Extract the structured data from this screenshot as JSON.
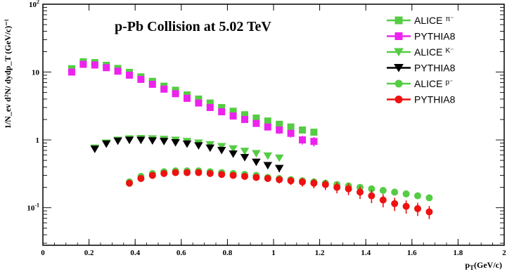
{
  "chart_data": {
    "type": "scatter",
    "title": "p-Pb Collision at 5.02 TeV",
    "xlabel": {
      "main": "p",
      "sub": "T",
      "rest": "(GeV/c)"
    },
    "ylabel": "1/N_ev d²N/ dydp_T (GeV/c)⁻¹",
    "xlim": [
      0,
      2
    ],
    "ylim": [
      0.028,
      100
    ],
    "y_scale": "log",
    "x_ticks": [
      "0",
      "0.2",
      "0.4",
      "0.6",
      "0.8",
      "1",
      "1.2",
      "1.4",
      "1.6",
      "1.8",
      "2"
    ],
    "y_ticks": [
      {
        "base": "10",
        "exp": "-1",
        "value": 0.1
      },
      {
        "base": "1",
        "exp": "",
        "value": 1
      },
      {
        "base": "10",
        "exp": "",
        "value": 10
      },
      {
        "base": "10",
        "exp": "2",
        "value": 100
      }
    ],
    "legend_position": "top-right",
    "grid": false,
    "series": [
      {
        "name": "ALICE π⁻",
        "label": "ALICE",
        "sup": "π⁻",
        "marker": "square",
        "color": "#55cc44",
        "x": [
          0.125,
          0.175,
          0.225,
          0.275,
          0.325,
          0.375,
          0.425,
          0.475,
          0.525,
          0.575,
          0.625,
          0.675,
          0.725,
          0.775,
          0.825,
          0.875,
          0.925,
          0.975,
          1.025,
          1.075,
          1.125,
          1.175
        ],
        "y": [
          11.2,
          14.2,
          13.8,
          12.6,
          11.3,
          9.9,
          8.5,
          7.3,
          6.2,
          5.4,
          4.6,
          4.0,
          3.5,
          3.0,
          2.65,
          2.35,
          2.1,
          1.9,
          1.7,
          1.55,
          1.4,
          1.3
        ]
      },
      {
        "name": "PYTHIA8",
        "label": "PYTHIA8",
        "sup": "",
        "marker": "square",
        "color": "#ee22ee",
        "x": [
          0.125,
          0.175,
          0.225,
          0.275,
          0.325,
          0.375,
          0.425,
          0.475,
          0.525,
          0.575,
          0.625,
          0.675,
          0.725,
          0.775,
          0.825,
          0.875,
          0.925,
          0.975,
          1.025,
          1.075,
          1.125,
          1.175
        ],
        "y": [
          10.0,
          13.0,
          12.7,
          11.6,
          10.3,
          9.0,
          7.8,
          6.6,
          5.6,
          4.8,
          4.1,
          3.5,
          3.0,
          2.6,
          2.25,
          2.0,
          1.75,
          1.55,
          1.4,
          1.25,
          1.0,
          0.95
        ]
      },
      {
        "name": "ALICE K⁻",
        "label": "ALICE",
        "sup": "K⁻",
        "marker": "triangle-down",
        "color": "#55cc44",
        "x": [
          0.225,
          0.275,
          0.325,
          0.375,
          0.425,
          0.475,
          0.525,
          0.575,
          0.625,
          0.675,
          0.725,
          0.775,
          0.825,
          0.875,
          0.925,
          0.975,
          1.025
        ],
        "y": [
          0.76,
          0.9,
          0.99,
          1.04,
          1.05,
          1.04,
          1.02,
          0.99,
          0.95,
          0.9,
          0.85,
          0.8,
          0.74,
          0.68,
          0.63,
          0.58,
          0.54
        ]
      },
      {
        "name": "PYTHIA8",
        "label": "PYTHIA8",
        "sup": "",
        "marker": "triangle-down",
        "color": "#000000",
        "x": [
          0.225,
          0.275,
          0.325,
          0.375,
          0.425,
          0.475,
          0.525,
          0.575,
          0.625,
          0.675,
          0.725,
          0.775,
          0.825,
          0.875,
          0.925,
          0.975,
          1.025
        ],
        "y": [
          0.73,
          0.87,
          0.96,
          0.99,
          0.99,
          0.97,
          0.95,
          0.91,
          0.87,
          0.82,
          0.76,
          0.7,
          0.62,
          0.55,
          0.47,
          0.42,
          0.38
        ]
      },
      {
        "name": "ALICE p⁻",
        "label": "ALICE",
        "sup": "p⁻",
        "marker": "circle",
        "color": "#55cc44",
        "x": [
          0.375,
          0.425,
          0.475,
          0.525,
          0.575,
          0.625,
          0.675,
          0.725,
          0.775,
          0.825,
          0.875,
          0.925,
          0.975,
          1.025,
          1.075,
          1.125,
          1.175,
          1.225,
          1.275,
          1.325,
          1.375,
          1.425,
          1.475,
          1.525,
          1.575,
          1.625,
          1.675
        ],
        "y": [
          0.24,
          0.29,
          0.32,
          0.34,
          0.35,
          0.35,
          0.35,
          0.34,
          0.33,
          0.32,
          0.31,
          0.3,
          0.28,
          0.27,
          0.26,
          0.25,
          0.24,
          0.23,
          0.22,
          0.21,
          0.2,
          0.19,
          0.18,
          0.17,
          0.16,
          0.15,
          0.14
        ]
      },
      {
        "name": "PYTHIA8",
        "label": "PYTHIA8",
        "sup": "",
        "marker": "circle",
        "color": "#ee1111",
        "x": [
          0.375,
          0.425,
          0.475,
          0.525,
          0.575,
          0.625,
          0.675,
          0.725,
          0.775,
          0.825,
          0.875,
          0.925,
          0.975,
          1.025,
          1.075,
          1.125,
          1.175,
          1.225,
          1.275,
          1.325,
          1.375,
          1.425,
          1.475,
          1.525,
          1.575,
          1.625,
          1.675
        ],
        "y": [
          0.23,
          0.27,
          0.3,
          0.32,
          0.33,
          0.33,
          0.33,
          0.32,
          0.31,
          0.3,
          0.29,
          0.28,
          0.27,
          0.26,
          0.25,
          0.24,
          0.23,
          0.22,
          0.2,
          0.19,
          0.17,
          0.15,
          0.13,
          0.115,
          0.105,
          0.097,
          0.087
        ]
      }
    ]
  }
}
